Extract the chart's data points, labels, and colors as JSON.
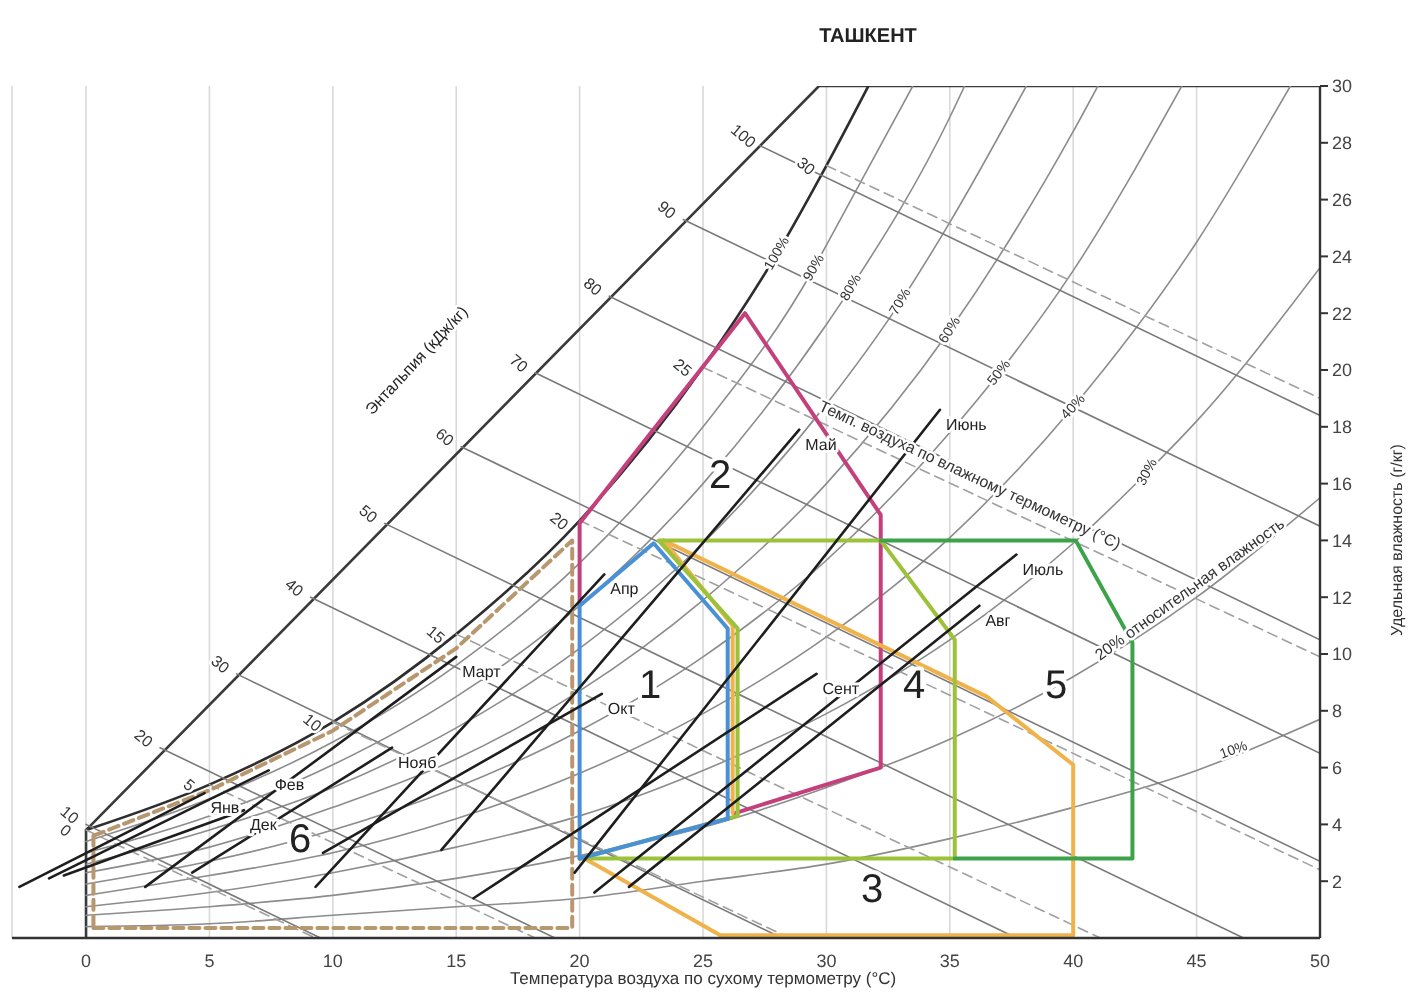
{
  "chart_data": {
    "type": "line",
    "title": "ТАШКЕНТ",
    "xlabel": "Температура воздуха по сухому термометру (°C)",
    "ylabel": "Удельная влажность (г/кг)",
    "xlim": [
      -3,
      50
    ],
    "xticks": [
      0,
      5,
      10,
      15,
      20,
      25,
      30,
      35,
      40,
      45,
      50
    ],
    "ylim": [
      0,
      30
    ],
    "yticks": [
      2,
      4,
      6,
      8,
      10,
      12,
      14,
      16,
      18,
      20,
      22,
      24,
      26,
      28,
      30
    ],
    "grid": "x",
    "series": [
      {
        "color": "#3a3a3a",
        "x": [
          0,
          0,
          29.7,
          50
        ],
        "values": [
          0,
          3.8,
          30,
          30
        ]
      },
      {
        "color": "#2e2e2e",
        "x": [
          0,
          5,
          10,
          15,
          20,
          25,
          28,
          30,
          31.7
        ],
        "values": [
          3.8,
          5.4,
          7.6,
          10.7,
          14.7,
          20.1,
          24.1,
          27.2,
          30
        ]
      },
      {
        "color": "#8c8c8c",
        "x": [
          0,
          5,
          10,
          15,
          20,
          25,
          29.5,
          30,
          33.5
        ],
        "values": [
          3.4,
          4.9,
          6.9,
          9.6,
          13.2,
          18.0,
          23.6,
          24.4,
          30
        ]
      },
      {
        "color": "#8c8c8c",
        "x": [
          0,
          5,
          10,
          15,
          20,
          25,
          30,
          31,
          35,
          35.6
        ],
        "values": [
          3.0,
          4.3,
          6.1,
          8.5,
          11.7,
          16.0,
          21.6,
          22.9,
          28.9,
          30
        ]
      },
      {
        "color": "#8c8c8c",
        "x": [
          0,
          5,
          10,
          15,
          20,
          25,
          30,
          33,
          35,
          38.1
        ],
        "values": [
          2.6,
          3.8,
          5.3,
          7.4,
          10.2,
          13.9,
          18.8,
          22.4,
          25.2,
          30
        ]
      },
      {
        "color": "#8c8c8c",
        "x": [
          0,
          5,
          10,
          15,
          20,
          25,
          30,
          35,
          40,
          41
        ],
        "values": [
          2.3,
          3.2,
          4.6,
          6.3,
          8.7,
          11.9,
          16.0,
          21.4,
          28.4,
          30
        ]
      },
      {
        "color": "#8c8c8c",
        "x": [
          0,
          5,
          10,
          15,
          20,
          25,
          30,
          35,
          37,
          40,
          44.4
        ],
        "values": [
          1.9,
          2.7,
          3.8,
          5.3,
          7.3,
          9.9,
          13.3,
          17.8,
          19.9,
          23.5,
          30
        ]
      },
      {
        "color": "#8c8c8c",
        "x": [
          0,
          5,
          10,
          15,
          20,
          25,
          30,
          35,
          40,
          45,
          48.8
        ],
        "values": [
          1.5,
          2.2,
          3.0,
          4.2,
          5.8,
          7.9,
          10.6,
          14.1,
          18.7,
          24.5,
          30
        ]
      },
      {
        "color": "#8c8c8c",
        "x": [
          0,
          5,
          10,
          15,
          20,
          25,
          30,
          35,
          40,
          43,
          45,
          50
        ],
        "values": [
          1.1,
          1.6,
          2.3,
          3.2,
          4.3,
          5.9,
          7.9,
          10.5,
          13.9,
          16.4,
          18.2,
          23.6
        ]
      },
      {
        "color": "#8c8c8c",
        "x": [
          0,
          5,
          10,
          15,
          20,
          25,
          30,
          35,
          40,
          45,
          50
        ],
        "values": [
          0.8,
          1.1,
          1.5,
          2.1,
          2.9,
          3.9,
          5.3,
          7.0,
          9.2,
          12.0,
          15.5
        ]
      },
      {
        "color": "#8c8c8c",
        "x": [
          0,
          5,
          10,
          15,
          20,
          25,
          30,
          35,
          40,
          45,
          46.5,
          50
        ],
        "values": [
          0.4,
          0.5,
          0.8,
          1.1,
          1.4,
          2.0,
          2.6,
          3.5,
          4.6,
          5.9,
          6.4,
          7.7
        ]
      },
      {
        "color": "#7a7a7a",
        "x": [
          0,
          9.5
        ],
        "values": [
          4.0,
          0
        ]
      },
      {
        "color": "#7a7a7a",
        "x": [
          3.0,
          19.0
        ],
        "values": [
          6.7,
          0
        ]
      },
      {
        "color": "#7a7a7a",
        "x": [
          6.1,
          28.2
        ],
        "values": [
          9.3,
          0
        ]
      },
      {
        "color": "#7a7a7a",
        "x": [
          9.1,
          37.7
        ],
        "values": [
          12.0,
          0
        ]
      },
      {
        "color": "#7a7a7a",
        "x": [
          12.1,
          46.9
        ],
        "values": [
          14.6,
          0
        ]
      },
      {
        "color": "#7a7a7a",
        "x": [
          15.2,
          50
        ],
        "values": [
          17.3,
          2.7
        ]
      },
      {
        "color": "#7a7a7a",
        "x": [
          18.2,
          50
        ],
        "values": [
          19.9,
          6.5
        ]
      },
      {
        "color": "#7a7a7a",
        "x": [
          21.2,
          50
        ],
        "values": [
          22.6,
          10.5
        ]
      },
      {
        "color": "#7a7a7a",
        "x": [
          24.2,
          50
        ],
        "values": [
          25.3,
          14.5
        ]
      },
      {
        "color": "#7a7a7a",
        "x": [
          27.3,
          50
        ],
        "values": [
          27.9,
          18.4
        ]
      },
      {
        "color": "#a0a0a0",
        "line_style": "dashed",
        "x": [
          0,
          9.3
        ],
        "values": [
          3.8,
          0
        ]
      },
      {
        "color": "#a0a0a0",
        "line_style": "dashed",
        "x": [
          5,
          18.2
        ],
        "values": [
          5.4,
          0
        ]
      },
      {
        "color": "#a0a0a0",
        "line_style": "dashed",
        "x": [
          10,
          28.5
        ],
        "values": [
          7.6,
          0
        ]
      },
      {
        "color": "#a0a0a0",
        "line_style": "dashed",
        "x": [
          15,
          41.1
        ],
        "values": [
          10.7,
          0
        ]
      },
      {
        "color": "#a0a0a0",
        "line_style": "dashed",
        "x": [
          20,
          50
        ],
        "values": [
          14.7,
          2.4
        ]
      },
      {
        "color": "#a0a0a0",
        "line_style": "dashed",
        "x": [
          25,
          50
        ],
        "values": [
          20.1,
          9.9
        ]
      },
      {
        "color": "#a0a0a0",
        "line_style": "dashed",
        "x": [
          30,
          50
        ],
        "values": [
          27.2,
          19.0
        ]
      },
      {
        "color": "#b8966e",
        "line_style": "dashed",
        "x": [
          0.3,
          19.7,
          19.7,
          15,
          10,
          5,
          0.3
        ],
        "values": [
          0.35,
          0.35,
          14.0,
          10.2,
          7.3,
          5.2,
          3.6
        ]
      },
      {
        "color": "#b8966e",
        "line_style": "dashed",
        "x": [
          0.3,
          0.3
        ],
        "values": [
          3.6,
          0.35
        ]
      },
      {
        "color": "#c4407c",
        "x": [
          20,
          20,
          26.7,
          32.2,
          32.2,
          26.3
        ],
        "values": [
          11.7,
          14.6,
          22,
          14.9,
          6.0,
          4.4
        ]
      },
      {
        "color": "#f0b24a",
        "x": [
          20.2,
          25.7,
          40,
          40,
          36.5,
          23.4,
          26.2,
          26.2
        ],
        "values": [
          2.8,
          0.1,
          0.1,
          6.1,
          8.5,
          14.0,
          11.0,
          4.4
        ]
      },
      {
        "color": "#9cc23a",
        "x": [
          26.4,
          26.4,
          23.2,
          32.2,
          35.2,
          35.2,
          20
        ],
        "values": [
          4.3,
          10.9,
          14.0,
          14.0,
          10.5,
          2.8,
          2.8
        ]
      },
      {
        "color": "#9cc23a",
        "x": [
          20,
          26.4
        ],
        "values": [
          2.8,
          4.3
        ]
      },
      {
        "color": "#3da34a",
        "x": [
          32.2,
          40.1,
          42.4,
          42.4,
          35.2
        ],
        "values": [
          14.0,
          14.0,
          10.4,
          2.8,
          2.8
        ]
      },
      {
        "color": "#4a90d6",
        "x": [
          20,
          20,
          23,
          26.0,
          26.0
        ],
        "values": [
          2.8,
          11.7,
          13.9,
          10.9,
          4.2
        ]
      },
      {
        "color": "#4a90d6",
        "x": [
          26.0,
          20
        ],
        "values": [
          4.2,
          2.8
        ]
      },
      {
        "name": "Янв",
        "color": "#1e1e1e",
        "x": [
          -2.7,
          4.8
        ],
        "values": [
          1.8,
          5.1
        ]
      },
      {
        "name": "Фев",
        "color": "#1e1e1e",
        "x": [
          -1.5,
          7.4
        ],
        "values": [
          2.1,
          5.9
        ]
      },
      {
        "name": "Март",
        "color": "#1e1e1e",
        "x": [
          2.4,
          15.0
        ],
        "values": [
          1.8,
          9.9
        ]
      },
      {
        "name": "Апр",
        "color": "#1e1e1e",
        "x": [
          9.3,
          21.0
        ],
        "values": [
          1.8,
          12.8
        ]
      },
      {
        "name": "Май",
        "color": "#1e1e1e",
        "x": [
          14.4,
          28.9
        ],
        "values": [
          3.1,
          17.9
        ]
      },
      {
        "name": "Июнь",
        "color": "#1e1e1e",
        "x": [
          19.8,
          34.6
        ],
        "values": [
          2.3,
          18.6
        ]
      },
      {
        "name": "Июль",
        "color": "#1e1e1e",
        "x": [
          20.6,
          37.7
        ],
        "values": [
          1.6,
          13.5
        ]
      },
      {
        "name": "Авг",
        "color": "#1e1e1e",
        "x": [
          22.0,
          36.2
        ],
        "values": [
          1.8,
          11.7
        ]
      },
      {
        "name": "Сент",
        "color": "#1e1e1e",
        "x": [
          15.7,
          29.6
        ],
        "values": [
          1.4,
          9.3
        ]
      },
      {
        "name": "Окт",
        "color": "#1e1e1e",
        "x": [
          9.6,
          20.9
        ],
        "values": [
          3.0,
          8.6
        ]
      },
      {
        "name": "Нояб",
        "color": "#1e1e1e",
        "x": [
          4.3,
          12.4
        ],
        "values": [
          2.3,
          6.7
        ]
      },
      {
        "name": "Дек",
        "color": "#1e1e1e",
        "x": [
          -0.9,
          6.4
        ],
        "values": [
          2.2,
          4.5
        ]
      }
    ],
    "annotations": [
      "Энтальпия (кДж/кг)",
      "1",
      "2",
      "3",
      "4",
      "5",
      "6",
      {
        "text": "Темп. воздуха по влажному термометру (°C)",
        "x": 35.5,
        "y": 15.9
      },
      {
        "text": "20% относительная влажность",
        "x": 44.7,
        "y": 12.3
      },
      {
        "text": "100%",
        "x": 28,
        "y": 24.1
      },
      {
        "text": "90%",
        "x": 29.5,
        "y": 23.6
      },
      {
        "text": "80%",
        "x": 31,
        "y": 22.9
      },
      {
        "text": "70%",
        "x": 33,
        "y": 22.4
      },
      {
        "text": "60%",
        "x": 35,
        "y": 21.4
      },
      {
        "text": "50%",
        "x": 37,
        "y": 19.9
      },
      {
        "text": "40%",
        "x": 40,
        "y": 18.7
      },
      {
        "text": "30%",
        "x": 43,
        "y": 16.4
      },
      {
        "text": "10%",
        "x": 46.5,
        "y": 6.4
      },
      {
        "text": "10",
        "x": 0,
        "y": 4.0
      },
      {
        "text": "20",
        "x": 3.0,
        "y": 6.7
      },
      {
        "text": "30",
        "x": 6.1,
        "y": 9.3
      },
      {
        "text": "40",
        "x": 9.1,
        "y": 12.0
      },
      {
        "text": "50",
        "x": 12.1,
        "y": 14.6
      },
      {
        "text": "60",
        "x": 15.2,
        "y": 17.3
      },
      {
        "text": "70",
        "x": 18.2,
        "y": 19.9
      },
      {
        "text": "80",
        "x": 21.2,
        "y": 22.6
      },
      {
        "text": "90",
        "x": 24.2,
        "y": 25.3
      },
      {
        "text": "100",
        "x": 27.3,
        "y": 27.9
      },
      {
        "text": "0",
        "x": 0,
        "y": 3.8
      },
      {
        "text": "5",
        "x": 5,
        "y": 5.4
      },
      {
        "text": "10",
        "x": 10,
        "y": 7.6
      },
      {
        "text": "15",
        "x": 15,
        "y": 10.7
      },
      {
        "text": "20",
        "x": 20,
        "y": 14.7
      },
      {
        "text": "25",
        "x": 25,
        "y": 20.1
      },
      {
        "text": "30",
        "x": 30,
        "y": 27.2
      }
    ]
  }
}
